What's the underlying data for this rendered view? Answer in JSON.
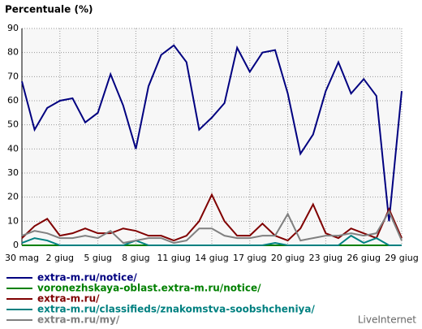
{
  "chart_data": {
    "type": "line",
    "title": "Percentuale (%)",
    "categories": [
      "30 mag",
      null,
      null,
      "2 giug",
      null,
      null,
      "5 giug",
      null,
      null,
      "8 giug",
      null,
      null,
      "11 giug",
      null,
      null,
      "14 giug",
      null,
      null,
      "17 giug",
      null,
      null,
      "20 giug",
      null,
      null,
      "23 giug",
      null,
      null,
      "26 giug",
      null,
      null,
      "29 giug"
    ],
    "ylim": [
      0,
      90
    ],
    "yticks": [
      0,
      10,
      20,
      30,
      40,
      50,
      60,
      70,
      80,
      90
    ],
    "grid": true,
    "series": [
      {
        "name": "extra-m.ru/notice/",
        "color": "#000080",
        "values": [
          68,
          48,
          57,
          60,
          61,
          51,
          55,
          71,
          58,
          40,
          66,
          79,
          83,
          76,
          48,
          53,
          59,
          82,
          72,
          80,
          81,
          63,
          38,
          46,
          64,
          76,
          63,
          69,
          62,
          10,
          64
        ]
      },
      {
        "name": "voronezhskaya-oblast.extra-m.ru/notice/",
        "color": "#008000",
        "values": [
          0,
          0,
          0,
          0,
          0,
          0,
          0,
          0,
          0,
          0,
          0,
          0,
          0,
          0,
          0,
          0,
          0,
          0,
          0,
          0,
          0,
          0,
          0,
          0,
          0,
          0,
          0,
          0,
          0,
          0,
          0
        ]
      },
      {
        "name": "extra-m.ru/",
        "color": "#800000",
        "values": [
          3,
          8,
          11,
          4,
          5,
          7,
          5,
          5,
          7,
          6,
          4,
          4,
          2,
          4,
          10,
          21,
          10,
          4,
          4,
          9,
          4,
          2,
          7,
          17,
          5,
          3,
          7,
          5,
          3,
          15,
          3
        ]
      },
      {
        "name": "extra-m.ru/classifieds/znakomstva-soobshcheniya/",
        "color": "#008080",
        "values": [
          1,
          3,
          2,
          0,
          0,
          0,
          0,
          0,
          0,
          2,
          0,
          0,
          0,
          0,
          0,
          0,
          0,
          0,
          0,
          0,
          1,
          0,
          0,
          0,
          0,
          0,
          4,
          1,
          3,
          0,
          0
        ]
      },
      {
        "name": "extra-m.ru/my/",
        "color": "#808080",
        "values": [
          4,
          6,
          5,
          3,
          3,
          4,
          3,
          6,
          1,
          2,
          3,
          3,
          1,
          2,
          7,
          7,
          4,
          3,
          3,
          4,
          4,
          13,
          2,
          3,
          4,
          4,
          5,
          4,
          5,
          14,
          2
        ]
      }
    ],
    "brand": "LiveInternet"
  }
}
